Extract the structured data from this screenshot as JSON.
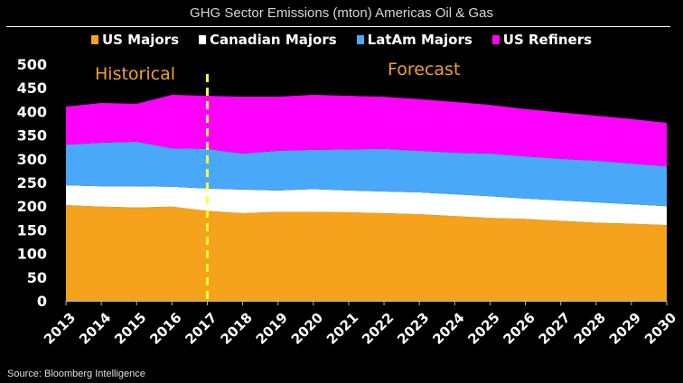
{
  "chart_data": {
    "type": "area",
    "stacked": true,
    "title": "GHG Sector Emissions (mton) Americas Oil & Gas",
    "xlabel": "",
    "ylabel": "",
    "ylim": [
      0,
      500
    ],
    "yticks": [
      0,
      50,
      100,
      150,
      200,
      250,
      300,
      350,
      400,
      450,
      500
    ],
    "x": [
      "2013",
      "2014",
      "2015",
      "2016",
      "2017",
      "2018",
      "2019",
      "2020",
      "2021",
      "2022",
      "2023",
      "2024",
      "2025",
      "2026",
      "2027",
      "2028",
      "2029",
      "2030"
    ],
    "series": [
      {
        "name": "US Majors",
        "color": "#f5a21c",
        "values": [
          202,
          199,
          197,
          199,
          190,
          185,
          188,
          188,
          187,
          185,
          183,
          179,
          175,
          173,
          169,
          165,
          163,
          160
        ]
      },
      {
        "name": "Canadian Majors",
        "color": "#ffffff",
        "values": [
          42,
          43,
          45,
          42,
          47,
          50,
          45,
          48,
          46,
          46,
          46,
          46,
          46,
          43,
          43,
          43,
          41,
          40
        ]
      },
      {
        "name": "LatAm Majors",
        "color": "#4aa8f8",
        "values": [
          86,
          92,
          94,
          81,
          84,
          76,
          84,
          83,
          87,
          90,
          88,
          88,
          90,
          89,
          88,
          88,
          86,
          84
        ]
      },
      {
        "name": "US Refiners",
        "color": "#ff00ff",
        "values": [
          80,
          84,
          80,
          113,
          112,
          120,
          114,
          116,
          113,
          110,
          109,
          107,
          103,
          100,
          98,
          95,
          94,
          92
        ]
      }
    ],
    "annotations": [
      {
        "text": "Historical",
        "color": "#f0a030"
      },
      {
        "text": "Forecast",
        "color": "#f0a030"
      }
    ],
    "divider": {
      "x": "2017",
      "color": "#ffff33",
      "style": "dashed"
    },
    "legend_position": "top",
    "grid": false
  },
  "source": "Source: Bloomberg Intelligence"
}
